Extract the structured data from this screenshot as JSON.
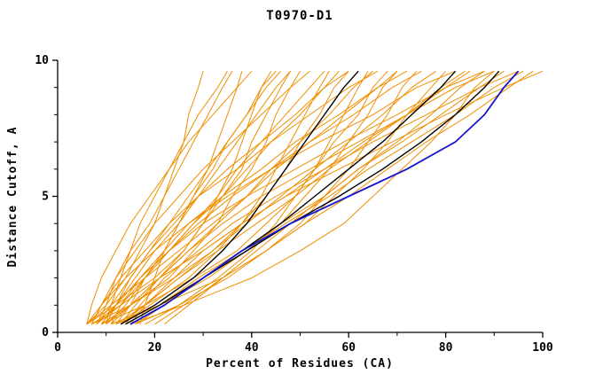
{
  "page": {
    "title": "T0970-D1"
  },
  "chart_data": {
    "type": "line",
    "title": "T0970-D1",
    "xlabel": "Percent of Residues (CA)",
    "ylabel": "Distance Cutoff, A",
    "xlim": [
      0,
      100
    ],
    "ylim": [
      0,
      10
    ],
    "x_major_ticks": [
      0,
      20,
      40,
      60,
      80,
      100
    ],
    "x_minor_ticks": [
      10,
      30,
      50,
      70,
      90
    ],
    "y_major_ticks": [
      0,
      5,
      10
    ],
    "y_minor_ticks": [
      1,
      2,
      3,
      4,
      6,
      7,
      8,
      9
    ],
    "grid": false,
    "legend": "none",
    "colors": {
      "orange": "#ef8f00",
      "black": "#000000",
      "blue": "#1515cd",
      "frame": "#000000"
    },
    "y_levels": [
      0.3,
      1,
      2,
      3,
      4,
      5,
      6,
      7,
      8,
      9,
      9.6
    ],
    "series": {
      "orange_models": [
        [
          6,
          10,
          14,
          17,
          20,
          22,
          24,
          26,
          27,
          29,
          30
        ],
        [
          8,
          11,
          15,
          19,
          23,
          27,
          31,
          35,
          39,
          42,
          45
        ],
        [
          10,
          12,
          15,
          19,
          24,
          29,
          35,
          42,
          49,
          55,
          60
        ],
        [
          12,
          21,
          31,
          39,
          46,
          51,
          56,
          60,
          64,
          67,
          70
        ],
        [
          7,
          13,
          21,
          30,
          38,
          47,
          55,
          63,
          72,
          80,
          85
        ],
        [
          14,
          17,
          22,
          29,
          36,
          45,
          55,
          65,
          76,
          87,
          95
        ],
        [
          9,
          15,
          23,
          28,
          33,
          36,
          40,
          43,
          45,
          48,
          50
        ],
        [
          11,
          15,
          21,
          27,
          33,
          39,
          44,
          50,
          56,
          61,
          65
        ],
        [
          6,
          7,
          9,
          12,
          15,
          19,
          23,
          27,
          32,
          37,
          40
        ],
        [
          15,
          26,
          40,
          50,
          59,
          65,
          71,
          77,
          82,
          86,
          90
        ],
        [
          10,
          14,
          18,
          23,
          28,
          33,
          37,
          42,
          47,
          52,
          55
        ],
        [
          12,
          15,
          18,
          23,
          29,
          36,
          44,
          52,
          61,
          69,
          75
        ],
        [
          8,
          13,
          18,
          22,
          25,
          28,
          31,
          33,
          35,
          37,
          38
        ],
        [
          13,
          18,
          25,
          32,
          39,
          46,
          53,
          60,
          67,
          73,
          78
        ],
        [
          9,
          12,
          17,
          23,
          30,
          39,
          49,
          59,
          70,
          80,
          88
        ],
        [
          7,
          15,
          24,
          32,
          38,
          43,
          47,
          50,
          54,
          57,
          60
        ],
        [
          16,
          22,
          30,
          38,
          46,
          55,
          62,
          71,
          79,
          87,
          92
        ],
        [
          8,
          10,
          12,
          16,
          20,
          25,
          30,
          36,
          42,
          48,
          52
        ],
        [
          10,
          15,
          21,
          26,
          30,
          33,
          36,
          38,
          40,
          42,
          44
        ],
        [
          6,
          11,
          18,
          25,
          32,
          39,
          45,
          52,
          59,
          66,
          70
        ],
        [
          15,
          18,
          24,
          30,
          38,
          47,
          58,
          69,
          80,
          92,
          100
        ],
        [
          11,
          21,
          34,
          43,
          51,
          57,
          63,
          68,
          72,
          77,
          80
        ],
        [
          9,
          12,
          16,
          20,
          25,
          29,
          33,
          37,
          41,
          45,
          48
        ],
        [
          7,
          9,
          13,
          18,
          23,
          29,
          37,
          44,
          52,
          60,
          66
        ],
        [
          13,
          19,
          27,
          33,
          38,
          42,
          45,
          48,
          51,
          54,
          56
        ],
        [
          12,
          18,
          25,
          33,
          41,
          49,
          56,
          64,
          72,
          79,
          84
        ],
        [
          10,
          11,
          13,
          15,
          17,
          20,
          23,
          26,
          29,
          33,
          35
        ],
        [
          6,
          12,
          20,
          26,
          30,
          34,
          38,
          40,
          43,
          46,
          48
        ],
        [
          14,
          21,
          29,
          38,
          47,
          56,
          64,
          73,
          82,
          90,
          96
        ],
        [
          11,
          13,
          17,
          22,
          27,
          34,
          42,
          49,
          58,
          66,
          72
        ],
        [
          9,
          18,
          28,
          37,
          43,
          49,
          53,
          57,
          62,
          65,
          68
        ],
        [
          8,
          12,
          17,
          23,
          28,
          34,
          39,
          44,
          50,
          55,
          58
        ],
        [
          13,
          16,
          21,
          27,
          34,
          42,
          52,
          62,
          72,
          82,
          90
        ],
        [
          16,
          25,
          35,
          43,
          50,
          55,
          60,
          64,
          68,
          71,
          74
        ],
        [
          7,
          9,
          12,
          15,
          19,
          22,
          25,
          28,
          31,
          34,
          36
        ],
        [
          6,
          9,
          14,
          20,
          27,
          35,
          44,
          54,
          65,
          74,
          82
        ],
        [
          18,
          25,
          33,
          40,
          45,
          49,
          53,
          56,
          59,
          62,
          64
        ],
        [
          20,
          26,
          34,
          43,
          51,
          60,
          68,
          76,
          85,
          93,
          98
        ],
        [
          17,
          18,
          20,
          22,
          25,
          28,
          32,
          35,
          39,
          43,
          46
        ],
        [
          22,
          27,
          34,
          41,
          48,
          55,
          62,
          70,
          77,
          83,
          88
        ]
      ],
      "black_models": [
        [
          13,
          20,
          28,
          34,
          39,
          43,
          47,
          51,
          55,
          59,
          62
        ],
        [
          14,
          21,
          30,
          38,
          46,
          53,
          60,
          67,
          73,
          79,
          82
        ],
        [
          15,
          22,
          30,
          39,
          48,
          58,
          67,
          75,
          82,
          88,
          91
        ]
      ],
      "blue_model": [
        15,
        22,
        30,
        38,
        48,
        60,
        72,
        82,
        88,
        92,
        95
      ]
    }
  }
}
